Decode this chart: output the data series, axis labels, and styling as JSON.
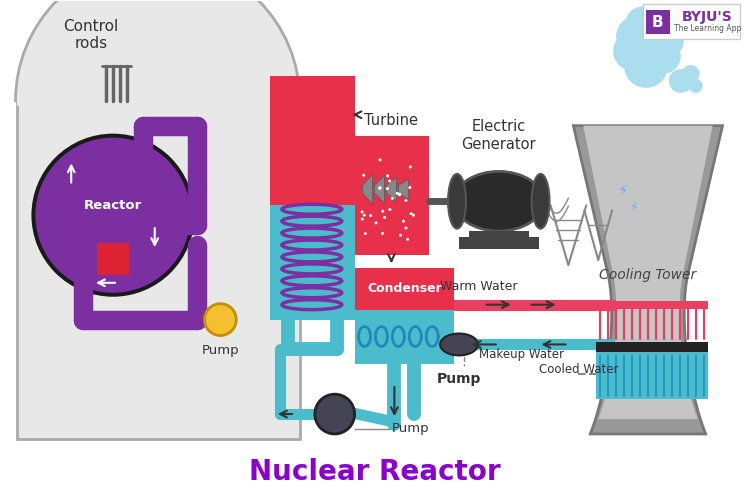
{
  "title": "Nuclear Reactor",
  "title_color": "#8B00CC",
  "title_fontsize": 20,
  "bg_color": "#ffffff",
  "labels": {
    "control_rods": "Control\nrods",
    "reactor": "Reactor",
    "pump1": "Pump",
    "pump2": "Pump",
    "pump3": "Pump",
    "turbine": "Turbine",
    "electric_generator": "Electric\nGenerator",
    "condenser": "Condenser",
    "cooling_tower": "Cooling Tower",
    "warm_water": "Warm Water",
    "makeup_water": "Makeup Water",
    "cooled_water": "Cooled Water"
  },
  "colors": {
    "containment_fill": "#e8e8e8",
    "containment_border": "#aaaaaa",
    "reactor_purple": "#7B2FA0",
    "reactor_black_border": "#1a1a1a",
    "heat_exchanger_red": "#E8304A",
    "heat_exchanger_teal": "#4BBCCC",
    "condenser_red": "#E8304A",
    "condenser_blue": "#4BBCCC",
    "turbine_red": "#E8304A",
    "generator_dark": "#2a2a2a",
    "cooling_tower_gray": "#999999",
    "cooling_tower_dark": "#777777",
    "cooling_water_blue": "#4BBCCC",
    "cooling_red_strip": "#E84060",
    "cooling_black_strip": "#222222",
    "pipe_purple": "#7B2FA0",
    "pipe_purple_border": "#5a1a80",
    "pipe_teal": "#4BBCCC",
    "pipe_red": "#E84060",
    "pump_yellow": "#F5C030",
    "pump_dark": "#444455",
    "control_rod_color": "#666666",
    "arrow_color": "#333333",
    "text_color": "#333333",
    "byju_purple": "#7B2FA0",
    "steam_blue": "#aaddee",
    "tower_line_gray": "#888888"
  }
}
